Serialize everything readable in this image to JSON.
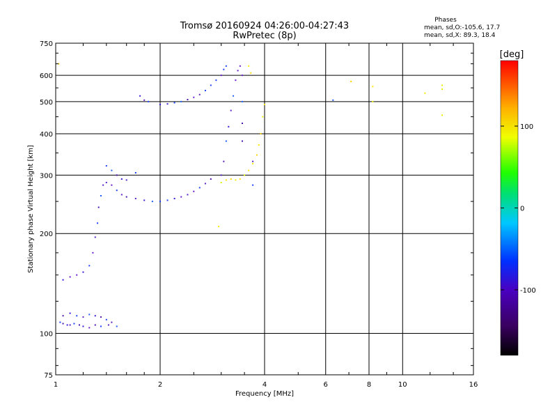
{
  "chart_data": {
    "type": "scatter",
    "title": "Tromsø 20160924 04:26:00-04:27:43",
    "subtitle": "RwPretec (8p)",
    "xlabel": "Frequency [MHz]",
    "ylabel": "Stationary phase Virtual Height [km]",
    "x_scale": "log",
    "y_scale": "log",
    "xlim": [
      1,
      16
    ],
    "ylim": [
      75,
      750
    ],
    "x_ticks": [
      1,
      2,
      4,
      6,
      8,
      10,
      16
    ],
    "x_tick_labels": [
      "1",
      "2",
      "4",
      "6",
      "8",
      "10",
      "16"
    ],
    "y_ticks": [
      75,
      100,
      200,
      300,
      400,
      500,
      600,
      750
    ],
    "y_tick_labels": [
      "75",
      "100",
      "200",
      "300",
      "400",
      "500",
      "600",
      "750"
    ],
    "grid": true,
    "stats": {
      "title": "Phases",
      "line_o": "mean, sd,O:-105.6, 17.7",
      "line_x": "mean, sd,X:  89.3, 18.4"
    },
    "colorbar": {
      "label": "[deg]",
      "range": [
        -180,
        180
      ],
      "ticks": [
        -100,
        0,
        100
      ],
      "tick_labels": [
        "-100",
        "0",
        "100"
      ],
      "colormap": "rainbow (black-purple-blue-cyan-green-yellow-orange-red)"
    },
    "series": [
      {
        "mode": "O (phase ≈ -105 deg, blue/purple)",
        "points": [
          [
            1.03,
            108
          ],
          [
            1.05,
            107
          ],
          [
            1.08,
            106
          ],
          [
            1.1,
            106
          ],
          [
            1.13,
            107
          ],
          [
            1.17,
            106
          ],
          [
            1.2,
            105
          ],
          [
            1.25,
            104
          ],
          [
            1.3,
            106
          ],
          [
            1.35,
            105
          ],
          [
            1.42,
            106
          ],
          [
            1.5,
            105
          ],
          [
            1.05,
            113
          ],
          [
            1.1,
            115
          ],
          [
            1.15,
            113
          ],
          [
            1.2,
            112
          ],
          [
            1.25,
            114
          ],
          [
            1.3,
            113
          ],
          [
            1.35,
            112
          ],
          [
            1.4,
            110
          ],
          [
            1.45,
            108
          ],
          [
            1.05,
            145
          ],
          [
            1.1,
            148
          ],
          [
            1.15,
            150
          ],
          [
            1.2,
            153
          ],
          [
            1.25,
            160
          ],
          [
            1.28,
            175
          ],
          [
            1.3,
            195
          ],
          [
            1.32,
            215
          ],
          [
            1.33,
            240
          ],
          [
            1.35,
            260
          ],
          [
            1.37,
            280
          ],
          [
            1.4,
            285
          ],
          [
            1.45,
            280
          ],
          [
            1.5,
            270
          ],
          [
            1.55,
            262
          ],
          [
            1.6,
            258
          ],
          [
            1.7,
            255
          ],
          [
            1.8,
            252
          ],
          [
            1.9,
            250
          ],
          [
            2.0,
            250
          ],
          [
            2.1,
            252
          ],
          [
            2.2,
            255
          ],
          [
            2.3,
            258
          ],
          [
            2.4,
            262
          ],
          [
            2.5,
            268
          ],
          [
            2.6,
            275
          ],
          [
            2.7,
            283
          ],
          [
            2.8,
            292
          ],
          [
            1.4,
            320
          ],
          [
            1.45,
            310
          ],
          [
            1.5,
            300
          ],
          [
            1.55,
            292
          ],
          [
            1.6,
            290
          ],
          [
            1.7,
            305
          ],
          [
            2.0,
            490
          ],
          [
            2.1,
            492
          ],
          [
            2.2,
            496
          ],
          [
            2.3,
            500
          ],
          [
            2.4,
            507
          ],
          [
            2.5,
            515
          ],
          [
            2.6,
            525
          ],
          [
            2.7,
            540
          ],
          [
            2.8,
            560
          ],
          [
            2.9,
            580
          ],
          [
            3.0,
            600
          ],
          [
            3.05,
            625
          ],
          [
            3.1,
            640
          ],
          [
            3.0,
            300
          ],
          [
            3.05,
            330
          ],
          [
            3.1,
            380
          ],
          [
            3.15,
            420
          ],
          [
            3.2,
            470
          ],
          [
            3.25,
            520
          ],
          [
            3.3,
            580
          ],
          [
            3.35,
            620
          ],
          [
            3.4,
            640
          ],
          [
            3.45,
            600
          ],
          [
            3.45,
            500
          ],
          [
            3.45,
            430
          ],
          [
            3.45,
            380
          ],
          [
            1.75,
            520
          ],
          [
            1.8,
            505
          ],
          [
            1.85,
            500
          ],
          [
            3.7,
            330
          ],
          [
            3.7,
            280
          ],
          [
            6.3,
            505
          ]
        ]
      },
      {
        "mode": "X (phase ≈ 89 deg, yellow)",
        "points": [
          [
            3.0,
            285
          ],
          [
            3.1,
            290
          ],
          [
            3.2,
            292
          ],
          [
            3.3,
            290
          ],
          [
            3.4,
            292
          ],
          [
            3.5,
            300
          ],
          [
            3.6,
            310
          ],
          [
            3.7,
            325
          ],
          [
            3.8,
            345
          ],
          [
            3.85,
            370
          ],
          [
            3.9,
            400
          ],
          [
            3.95,
            450
          ],
          [
            4.0,
            490
          ],
          [
            3.6,
            640
          ],
          [
            3.65,
            610
          ],
          [
            7.1,
            575
          ],
          [
            8.2,
            555
          ],
          [
            8.2,
            500
          ],
          [
            11.6,
            530
          ],
          [
            13.0,
            560
          ],
          [
            13.0,
            545
          ],
          [
            13.0,
            455
          ],
          [
            1.02,
            650
          ],
          [
            2.95,
            210
          ]
        ]
      }
    ]
  }
}
